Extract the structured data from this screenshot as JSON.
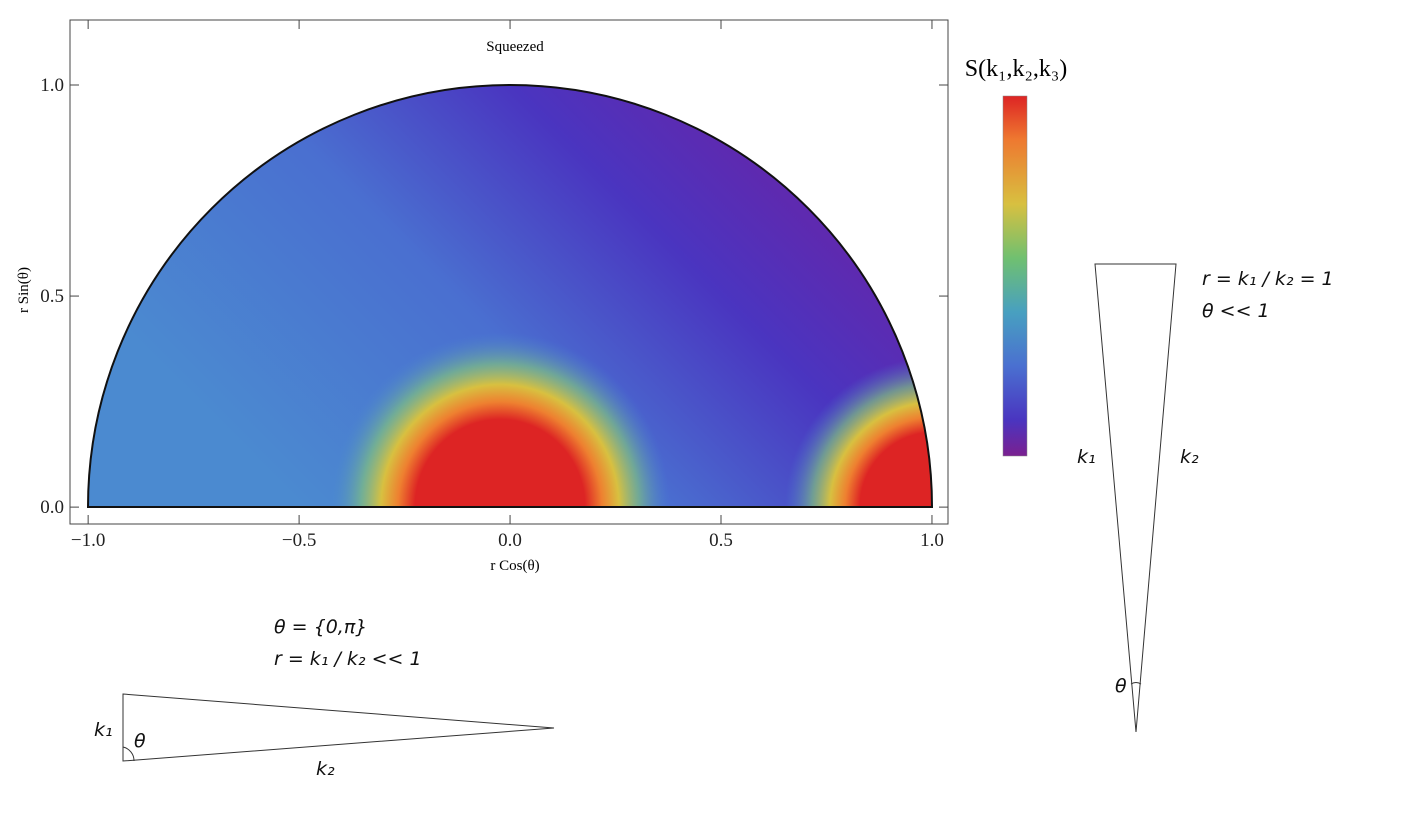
{
  "chart_data": {
    "type": "density",
    "title": "Squeezed",
    "x_label": "r Cos(θ)",
    "y_label": "r Sin(θ)",
    "xlim": [
      -1.043,
      1.038
    ],
    "ylim": [
      -0.04,
      1.154
    ],
    "xticks": [
      {
        "value": -1.0,
        "label": "−1.0"
      },
      {
        "value": -0.5,
        "label": "−0.5"
      },
      {
        "value": 0.0,
        "label": "0.0"
      },
      {
        "value": 0.5,
        "label": "0.5"
      },
      {
        "value": 1.0,
        "label": "1.0"
      }
    ],
    "yticks": [
      {
        "value": 0.0,
        "label": "0.0"
      },
      {
        "value": 0.5,
        "label": "0.5"
      },
      {
        "value": 1.0,
        "label": "1.0"
      }
    ],
    "colorbar_label": "S(k₁,k₂,k₃)"
  },
  "annotations": {
    "squeezed_theta": "θ = {0,π}",
    "squeezed_r": "r =  k₁ / k₂ << 1",
    "equil_r": "r =  k₁ / k₂ = 1",
    "equil_theta": "θ << 1",
    "tri1_k1": "k₁",
    "tri1_k2": "k₂",
    "tri1_theta": "θ",
    "tri2_k1": "k₁",
    "tri2_k2": "k₂",
    "tri2_theta": "θ"
  }
}
